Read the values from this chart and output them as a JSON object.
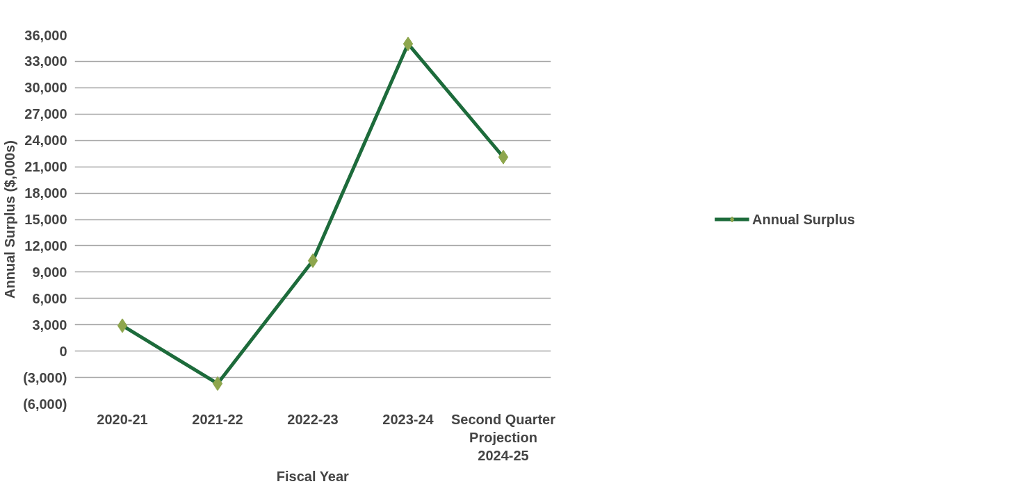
{
  "chart_data": {
    "type": "line",
    "xlabel": "Fiscal Year",
    "ylabel": "Annual Surplus ($,000s)",
    "categories": [
      "2020-21",
      "2021-22",
      "2022-23",
      "2023-24",
      "Second Quarter Projection 2024-25"
    ],
    "series": [
      {
        "name": "Annual Surplus",
        "color": "#1d6b3b",
        "colors": [
          "#8ea64d",
          "#8ea64d",
          "#8ea64d",
          "#8ea64d",
          "#8ea64d"
        ],
        "values": [
          2900,
          -3700,
          10300,
          35000,
          22100
        ]
      }
    ],
    "ylim": [
      -6000,
      36000
    ],
    "yticks": [
      {
        "value": -6000,
        "label": "(6,000)"
      },
      {
        "value": -3000,
        "label": "(3,000)"
      },
      0,
      {
        "value": 3000,
        "label": "3,000"
      },
      {
        "value": 6000,
        "label": "6,000"
      },
      {
        "value": 9000,
        "label": "9,000"
      },
      {
        "value": 12000,
        "label": "12,000"
      },
      {
        "value": 15000,
        "label": "15,000"
      },
      {
        "value": 18000,
        "label": "18,000"
      },
      {
        "value": 21000,
        "label": "21,000"
      },
      {
        "value": 24000,
        "label": "24,000"
      },
      {
        "value": 27000,
        "label": "27,000"
      },
      {
        "value": 30000,
        "label": "30,000"
      },
      {
        "value": 33000,
        "label": "33,000"
      },
      {
        "value": 36000,
        "label": "36,000"
      }
    ],
    "grid": "y",
    "legend": "right",
    "marker": "diamond",
    "line_style": "solid"
  }
}
